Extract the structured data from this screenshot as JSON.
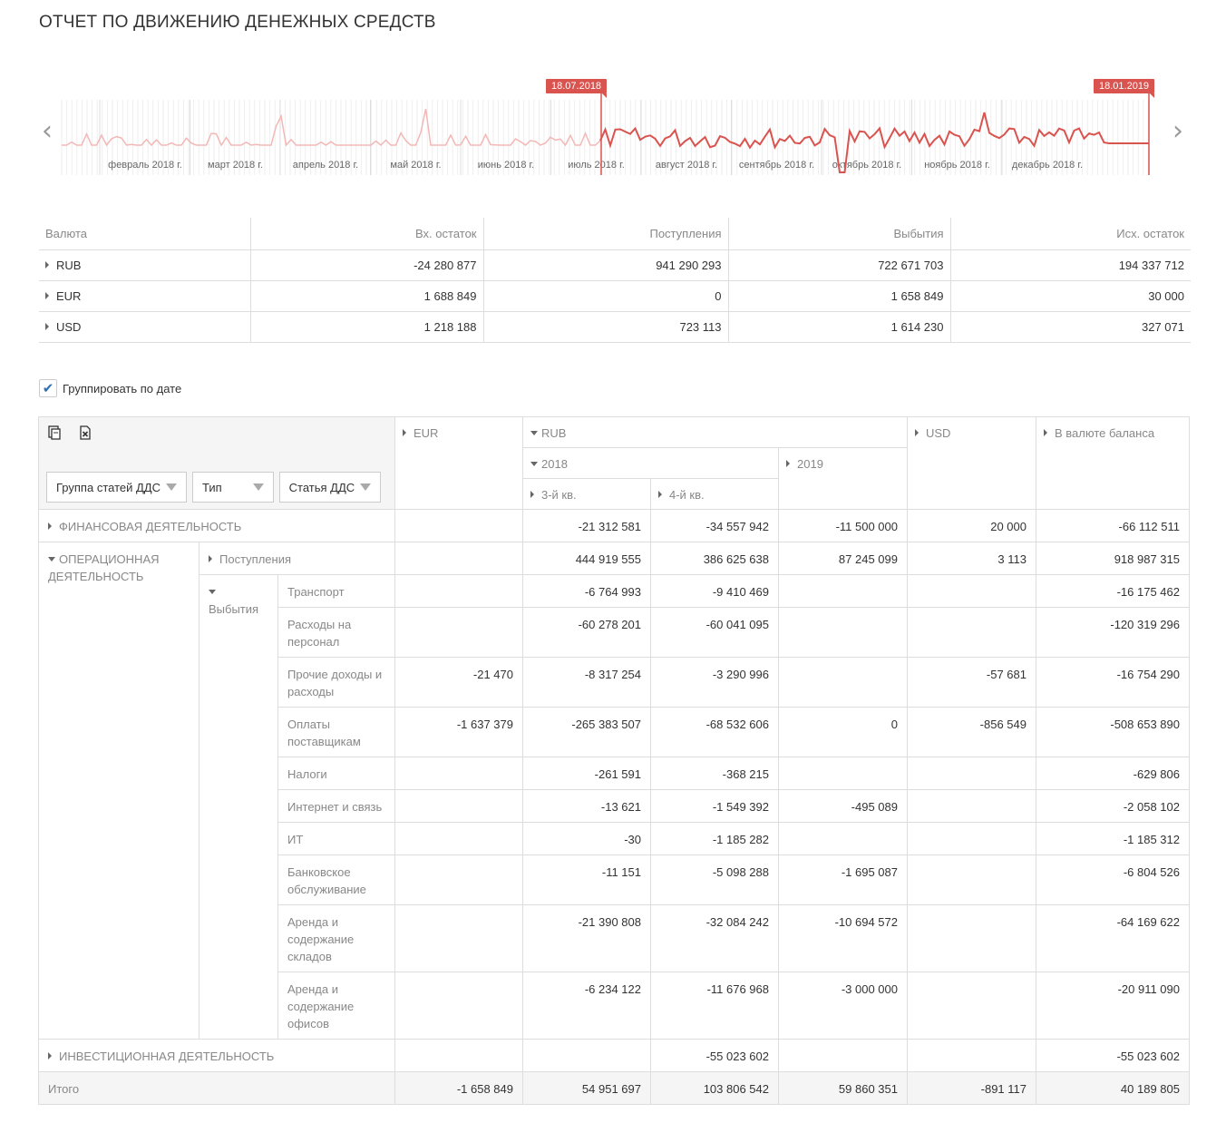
{
  "page_title": "ОТЧЕТ ПО ДВИЖЕНИЮ ДЕНЕЖНЫХ СРЕДСТВ",
  "range_selector": {
    "start_date": "18.07.2018",
    "end_date": "18.01.2019",
    "months": [
      "февраль 2018 г.",
      "март 2018 г.",
      "апрель 2018 г.",
      "май 2018 г.",
      "июнь 2018 г.",
      "июль 2018 г.",
      "август 2018 г.",
      "сентябрь 2018 г.",
      "октябрь 2018 г.",
      "ноябрь 2018 г.",
      "декабрь 2018 г."
    ],
    "line_color": "#d9534f",
    "faded_color": "#f2b8b6"
  },
  "summary": {
    "columns": [
      "Валюта",
      "Вх. остаток",
      "Поступления",
      "Выбытия",
      "Исх. остаток"
    ],
    "rows": [
      {
        "currency": "RUB",
        "in": "-24 280 877",
        "receipts": "941 290 293",
        "disposals": "722 671 703",
        "out": "194 337 712"
      },
      {
        "currency": "EUR",
        "in": "1 688 849",
        "receipts": "0",
        "disposals": "1 658 849",
        "out": "30 000"
      },
      {
        "currency": "USD",
        "in": "1 218 188",
        "receipts": "723 113",
        "disposals": "1 614 230",
        "out": "327 071"
      }
    ]
  },
  "group_by_date": {
    "label": "Группировать по дате",
    "checked": true
  },
  "pivot": {
    "fields": [
      "Группа статей ДДС",
      "Тип",
      "Статья ДДС"
    ],
    "col_headers": {
      "eur": "EUR",
      "rub": "RUB",
      "y2018": "2018",
      "q3": "3-й кв.",
      "q4": "4-й кв.",
      "y2019": "2019",
      "usd": "USD",
      "balance": "В валюте баланса"
    },
    "groups": {
      "fin": "ФИНАНСОВАЯ ДЕЯТЕЛЬНОСТЬ",
      "op": "ОПЕРАЦИОННАЯ ДЕЯТЕЛЬНОСТЬ",
      "inv": "ИНВЕСТИЦИОННАЯ ДЕЯТЕЛЬНОСТЬ"
    },
    "types": {
      "receipts": "Поступления",
      "disposals": "Выбытия"
    },
    "rows": {
      "fin": [
        "",
        "-21 312 581",
        "-34 557 942",
        "-11 500 000",
        "20 000",
        "-66 112 511"
      ],
      "receipts": [
        "",
        "444 919 555",
        "386 625 638",
        "87 245 099",
        "3 113",
        "918 987 315"
      ],
      "inv": [
        "",
        "",
        "-55 023 602",
        "",
        "",
        "-55 023 602"
      ]
    },
    "disposal_items": [
      {
        "name": "Транспорт",
        "v": [
          "",
          "-6 764 993",
          "-9 410 469",
          "",
          "",
          "-16 175 462"
        ]
      },
      {
        "name": "Расходы на персонал",
        "v": [
          "",
          "-60 278 201",
          "-60 041 095",
          "",
          "",
          "-120 319 296"
        ]
      },
      {
        "name": "Прочие доходы и расходы",
        "v": [
          "-21 470",
          "-8 317 254",
          "-3 290 996",
          "",
          "-57 681",
          "-16 754 290"
        ]
      },
      {
        "name": "Оплаты поставщикам",
        "v": [
          "-1 637 379",
          "-265 383 507",
          "-68 532 606",
          "0",
          "-856 549",
          "-508 653 890"
        ]
      },
      {
        "name": "Налоги",
        "v": [
          "",
          "-261 591",
          "-368 215",
          "",
          "",
          "-629 806"
        ]
      },
      {
        "name": "Интернет и связь",
        "v": [
          "",
          "-13 621",
          "-1 549 392",
          "-495 089",
          "",
          "-2 058 102"
        ]
      },
      {
        "name": "ИТ",
        "v": [
          "",
          "-30",
          "-1 185 282",
          "",
          "",
          "-1 185 312"
        ]
      },
      {
        "name": "Банковское обслуживание",
        "v": [
          "",
          "-11 151",
          "-5 098 288",
          "-1 695 087",
          "",
          "-6 804 526"
        ]
      },
      {
        "name": "Аренда и содержание складов",
        "v": [
          "",
          "-21 390 808",
          "-32 084 242",
          "-10 694 572",
          "",
          "-64 169 622"
        ]
      },
      {
        "name": "Аренда и содержание офисов",
        "v": [
          "",
          "-6 234 122",
          "-11 676 968",
          "-3 000 000",
          "",
          "-20 911 090"
        ]
      }
    ],
    "total": {
      "label": "Итого",
      "v": [
        "-1 658 849",
        "54 951 697",
        "103 806 542",
        "59 860 351",
        "-891 117",
        "40 189 805"
      ]
    }
  }
}
